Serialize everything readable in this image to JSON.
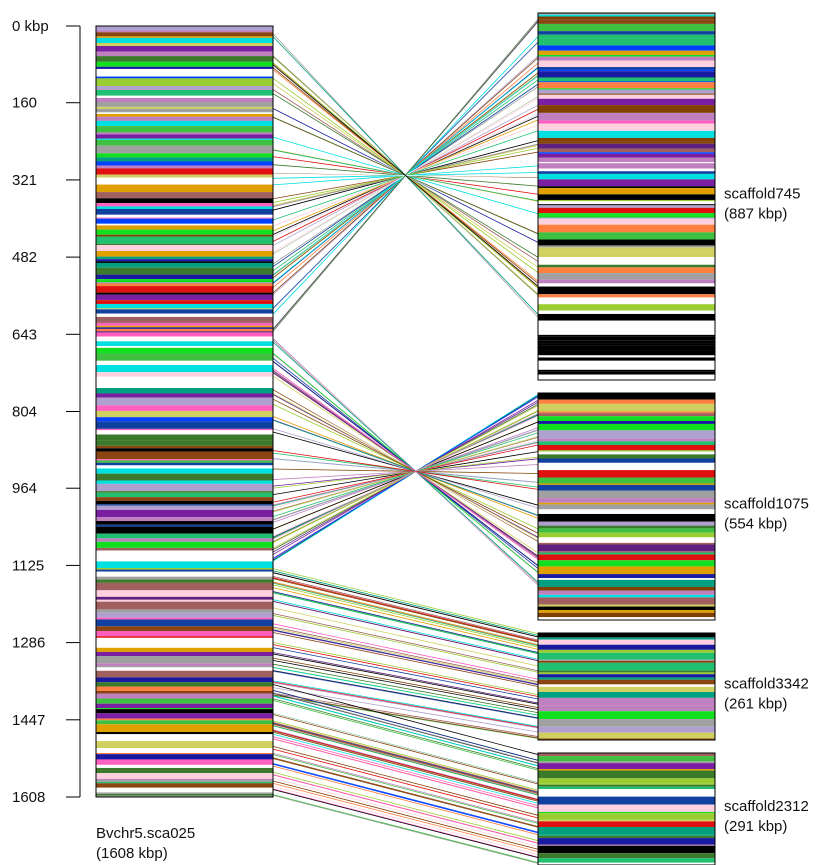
{
  "reference": {
    "name": "Bvchr5.sca025",
    "size_label": "(1608 kbp)",
    "length_kbp": 1608
  },
  "axis": {
    "ticks": [
      {
        "value": 0,
        "label": "0 kbp"
      },
      {
        "value": 160,
        "label": "160"
      },
      {
        "value": 321,
        "label": "321"
      },
      {
        "value": 482,
        "label": "482"
      },
      {
        "value": 643,
        "label": "643"
      },
      {
        "value": 804,
        "label": "804"
      },
      {
        "value": 964,
        "label": "964"
      },
      {
        "value": 1125,
        "label": "1125"
      },
      {
        "value": 1286,
        "label": "1286"
      },
      {
        "value": 1447,
        "label": "1447"
      },
      {
        "value": 1608,
        "label": "1608"
      }
    ]
  },
  "scaffolds": [
    {
      "id": "scaffold745",
      "name": "scaffold745",
      "size_label": "(887 kbp)",
      "length_kbp": 887,
      "ref_start_kbp": 0,
      "ref_end_kbp": 650,
      "pattern": "inverted"
    },
    {
      "id": "scaffold1075",
      "name": "scaffold1075",
      "size_label": "(554 kbp)",
      "length_kbp": 554,
      "ref_start_kbp": 650,
      "ref_end_kbp": 1120,
      "pattern": "inverted"
    },
    {
      "id": "scaffold3342",
      "name": "scaffold3342",
      "size_label": "(261 kbp)",
      "length_kbp": 261,
      "ref_start_kbp": 1130,
      "ref_end_kbp": 1400,
      "pattern": "collinear"
    },
    {
      "id": "scaffold2312",
      "name": "scaffold2312",
      "size_label": "(291 kbp)",
      "length_kbp": 291,
      "ref_start_kbp": 1370,
      "ref_end_kbp": 1608,
      "pattern": "collinear"
    }
  ],
  "colors": {
    "palette": [
      "#000000",
      "#1a1aa0",
      "#7a1fa2",
      "#e01010",
      "#3a7a2a",
      "#9acd32",
      "#c080c0",
      "#20c070",
      "#ff8040",
      "#a0a0a0",
      "#ff60c0",
      "#00e0e0",
      "#0040ff",
      "#10e020",
      "#8b4513",
      "#b0a0d0",
      "#602080",
      "#a06060",
      "#40c040",
      "#ffd0e0",
      "#1040a0",
      "#d0d060",
      "#804000",
      "#00a080",
      "#e0a000",
      "#ffffff",
      "#ffffff",
      "#ffffff"
    ]
  }
}
